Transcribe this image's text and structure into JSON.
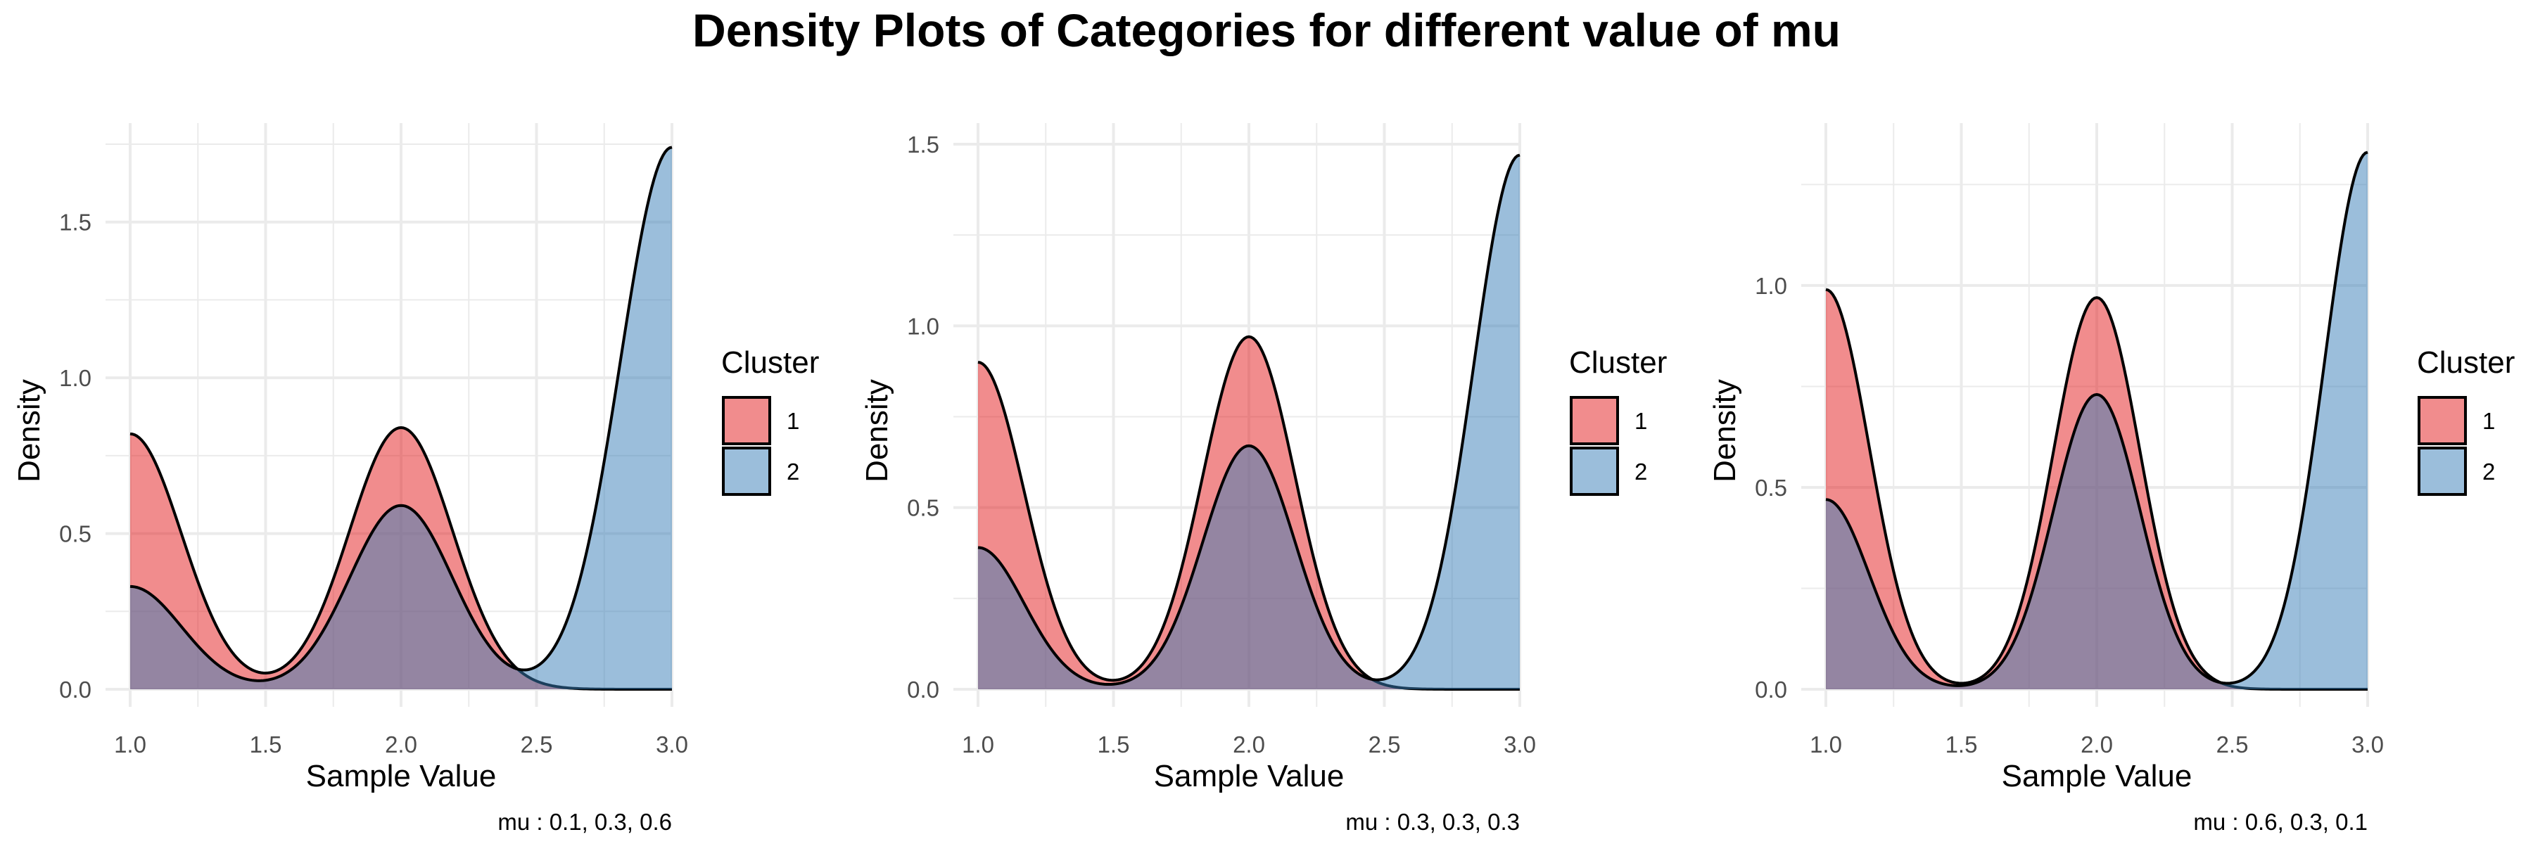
{
  "title": "Density Plots of Categories for different value of mu",
  "colors": {
    "cluster_1": "#E41A1C",
    "cluster_2": "#377EB8",
    "outline": "#000000",
    "grid": "#EBEBEB"
  },
  "legend": {
    "title": "Cluster",
    "items": [
      "1",
      "2"
    ]
  },
  "chart_data": [
    {
      "type": "area",
      "subtype": "density",
      "xlabel": "Sample Value",
      "ylabel": "Density",
      "caption": "mu :  0.1, 0.3, 0.6",
      "xlim": [
        1.0,
        3.0
      ],
      "ylim": [
        0,
        1.75
      ],
      "x_ticks": [
        "1.0",
        "1.5",
        "2.0",
        "2.5",
        "3.0"
      ],
      "y_ticks": [
        "0.0",
        "0.5",
        "1.0",
        "1.5"
      ],
      "y_tick_values": [
        0,
        0.5,
        1.0,
        1.5
      ],
      "legend_position": "right",
      "series": [
        {
          "name": "1",
          "kernels": [
            {
              "mu": 1.0,
              "h": 0.82
            },
            {
              "mu": 2.0,
              "h": 0.84
            },
            {
              "mu": 3.0,
              "h": 0.0
            }
          ],
          "sigma": 0.19
        },
        {
          "name": "2",
          "kernels": [
            {
              "mu": 1.0,
              "h": 0.33
            },
            {
              "mu": 2.0,
              "h": 0.59
            },
            {
              "mu": 3.0,
              "h": 1.74
            }
          ],
          "sigma": 0.19
        }
      ]
    },
    {
      "type": "area",
      "subtype": "density",
      "xlabel": "Sample Value",
      "ylabel": "Density",
      "caption": "mu :  0.3, 0.3, 0.3",
      "xlim": [
        1.0,
        3.0
      ],
      "ylim": [
        0,
        1.5
      ],
      "x_ticks": [
        "1.0",
        "1.5",
        "2.0",
        "2.5",
        "3.0"
      ],
      "y_ticks": [
        "0.0",
        "0.5",
        "1.0",
        "1.5"
      ],
      "y_tick_values": [
        0,
        0.5,
        1.0,
        1.5
      ],
      "legend_position": "right",
      "series": [
        {
          "name": "1",
          "kernels": [
            {
              "mu": 1.0,
              "h": 0.9
            },
            {
              "mu": 2.0,
              "h": 0.97
            },
            {
              "mu": 3.0,
              "h": 0.0
            }
          ],
          "sigma": 0.17
        },
        {
          "name": "2",
          "kernels": [
            {
              "mu": 1.0,
              "h": 0.39
            },
            {
              "mu": 2.0,
              "h": 0.67
            },
            {
              "mu": 3.0,
              "h": 1.47
            }
          ],
          "sigma": 0.17
        }
      ]
    },
    {
      "type": "area",
      "subtype": "density",
      "xlabel": "Sample Value",
      "ylabel": "Density",
      "caption": "mu :  0.6, 0.3, 0.1",
      "xlim": [
        1.0,
        3.0
      ],
      "ylim": [
        0,
        1.35
      ],
      "x_ticks": [
        "1.0",
        "1.5",
        "2.0",
        "2.5",
        "3.0"
      ],
      "y_ticks": [
        "0.0",
        "0.5",
        "1.0"
      ],
      "y_tick_values": [
        0,
        0.5,
        1.0
      ],
      "legend_position": "right",
      "series": [
        {
          "name": "1",
          "kernels": [
            {
              "mu": 1.0,
              "h": 0.99
            },
            {
              "mu": 2.0,
              "h": 0.97
            },
            {
              "mu": 3.0,
              "h": 0.0
            }
          ],
          "sigma": 0.16
        },
        {
          "name": "2",
          "kernels": [
            {
              "mu": 1.0,
              "h": 0.47
            },
            {
              "mu": 2.0,
              "h": 0.73
            },
            {
              "mu": 3.0,
              "h": 1.33
            }
          ],
          "sigma": 0.16
        }
      ]
    }
  ]
}
